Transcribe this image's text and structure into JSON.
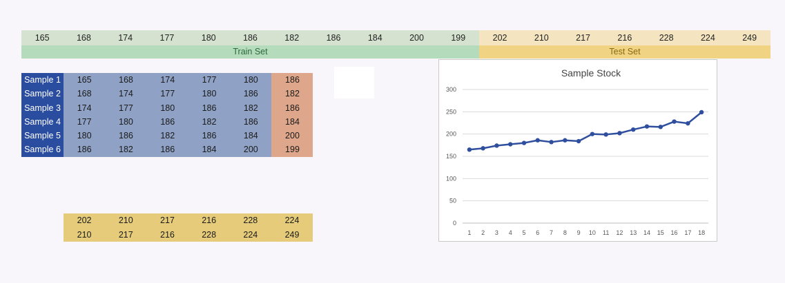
{
  "top_row": {
    "train_values": [
      "165",
      "168",
      "174",
      "177",
      "180",
      "186",
      "182",
      "186",
      "184",
      "200",
      "199"
    ],
    "test_values": [
      "202",
      "210",
      "217",
      "216",
      "228",
      "224",
      "249"
    ]
  },
  "bands": {
    "train_label": "Train Set",
    "test_label": "Test Set"
  },
  "samples": [
    {
      "label": "Sample 1",
      "inputs": [
        "165",
        "168",
        "174",
        "177",
        "180"
      ],
      "target": "186"
    },
    {
      "label": "Sample 2",
      "inputs": [
        "168",
        "174",
        "177",
        "180",
        "186"
      ],
      "target": "182"
    },
    {
      "label": "Sample 3",
      "inputs": [
        "174",
        "177",
        "180",
        "186",
        "182"
      ],
      "target": "186"
    },
    {
      "label": "Sample 4",
      "inputs": [
        "177",
        "180",
        "186",
        "182",
        "186"
      ],
      "target": "184"
    },
    {
      "label": "Sample 5",
      "inputs": [
        "180",
        "186",
        "182",
        "186",
        "184"
      ],
      "target": "200"
    },
    {
      "label": "Sample 6",
      "inputs": [
        "186",
        "182",
        "186",
        "184",
        "200"
      ],
      "target": "199"
    }
  ],
  "test_rows": [
    [
      "202",
      "210",
      "217",
      "216",
      "228",
      "224"
    ],
    [
      "210",
      "217",
      "216",
      "228",
      "224",
      "249"
    ]
  ],
  "colors": {
    "train_band": "#b5dbbd",
    "test_band": "#f0d483",
    "sample_label": "#2a4da0",
    "sample_input": "#8fa1c4",
    "sample_target": "#dea68a",
    "line": "#2f4f9e"
  },
  "chart_data": {
    "type": "line",
    "title": "Sample Stock",
    "xlabel": "",
    "ylabel": "",
    "x": [
      1,
      2,
      3,
      4,
      5,
      6,
      7,
      8,
      9,
      10,
      11,
      12,
      13,
      14,
      15,
      16,
      17,
      18
    ],
    "series": [
      {
        "values": [
          165,
          168,
          174,
          177,
          180,
          186,
          182,
          186,
          184,
          200,
          199,
          202,
          210,
          217,
          216,
          228,
          224,
          249
        ]
      }
    ],
    "ylim": [
      0,
      300
    ],
    "yticks": [
      0,
      50,
      100,
      150,
      200,
      250,
      300
    ],
    "grid": true,
    "legend": "none"
  }
}
